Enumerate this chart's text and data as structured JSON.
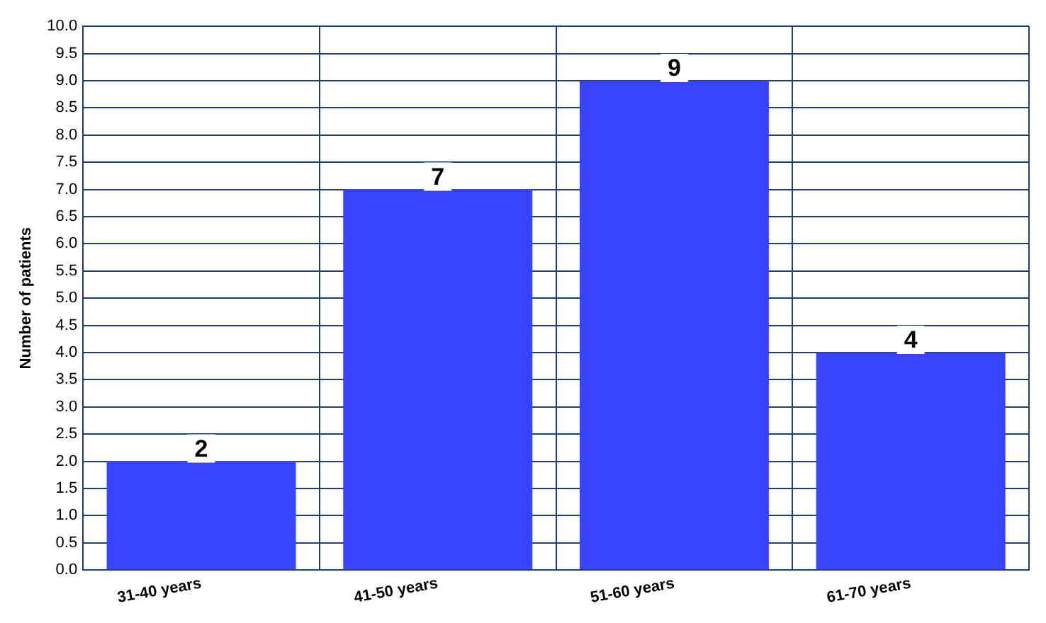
{
  "chart_data": {
    "type": "bar",
    "ylabel": "Number of patients",
    "categories": [
      "31-40 years",
      "41-50 years",
      "51-60 years",
      "61-70 years"
    ],
    "values": [
      2,
      7,
      9,
      4
    ],
    "color": "#3843ff",
    "ylim": [
      0,
      10
    ],
    "yticks": [
      {
        "value": 0,
        "label": "0.0"
      },
      {
        "value": 0.5,
        "label": "0.5"
      },
      {
        "value": 1,
        "label": "1.0"
      },
      {
        "value": 1.5,
        "label": "1.5"
      },
      {
        "value": 2,
        "label": "2.0"
      },
      {
        "value": 2.5,
        "label": "2.5"
      },
      {
        "value": 3,
        "label": "3.0"
      },
      {
        "value": 3.5,
        "label": "3.5"
      },
      {
        "value": 4,
        "label": "4.0"
      },
      {
        "value": 4.5,
        "label": "4.5"
      },
      {
        "value": 5,
        "label": "5.0"
      },
      {
        "value": 5.5,
        "label": "5.5"
      },
      {
        "value": 6,
        "label": "6.0"
      },
      {
        "value": 6.5,
        "label": "6.5"
      },
      {
        "value": 7,
        "label": "7.0"
      },
      {
        "value": 7.5,
        "label": "7.5"
      },
      {
        "value": 8,
        "label": "8.0"
      },
      {
        "value": 8.5,
        "label": "8.5"
      },
      {
        "value": 9,
        "label": "9.0"
      },
      {
        "value": 9.5,
        "label": "9.5"
      },
      {
        "value": 10,
        "label": "10.0"
      }
    ],
    "grid": true,
    "data_labels": true
  }
}
